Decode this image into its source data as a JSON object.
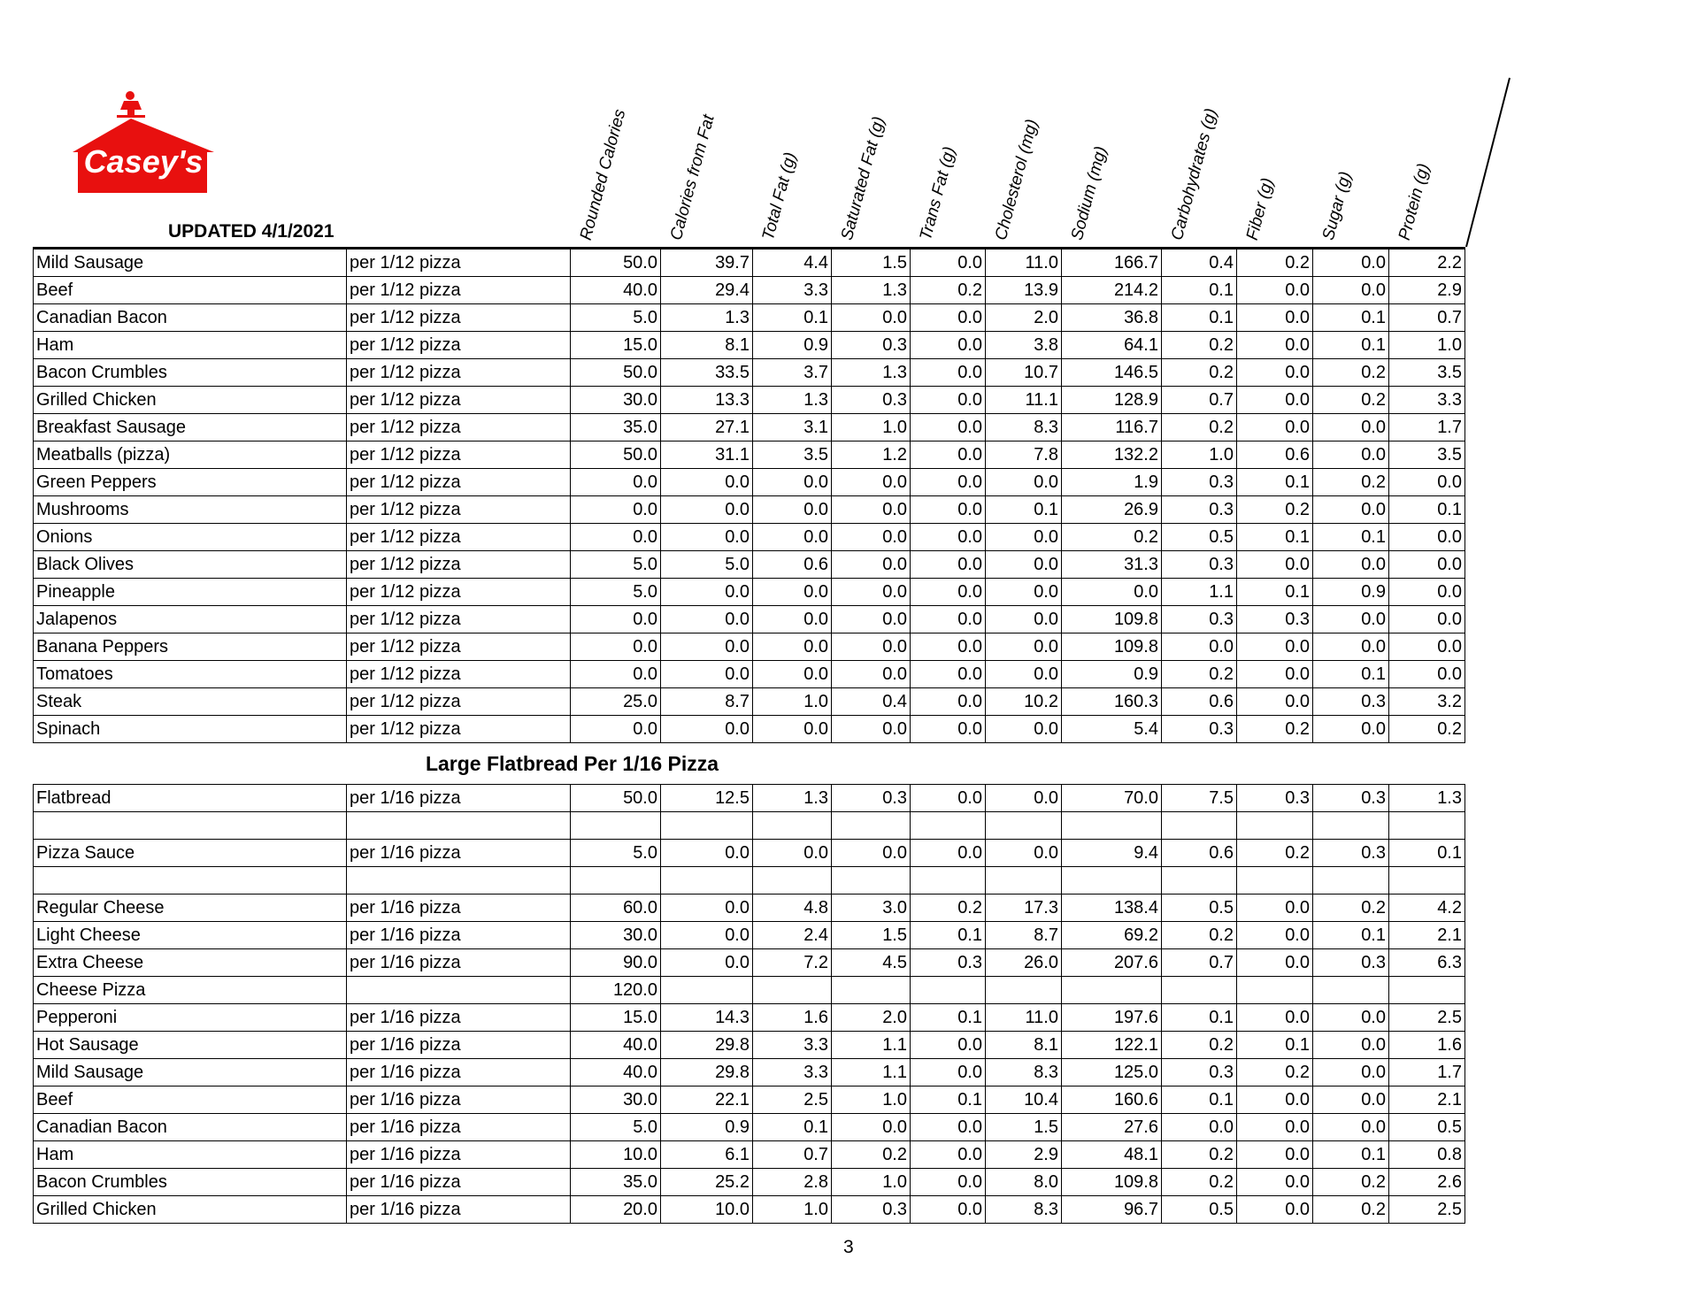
{
  "brand": {
    "logo_text": "Casey's",
    "color": "#e8100f"
  },
  "updated": "UPDATED 4/1/2021",
  "columns": [
    "Rounded Calories",
    "Calories from Fat",
    "Total Fat (g)",
    "Saturated Fat (g)",
    "Trans Fat (g)",
    "Cholesterol (mg)",
    "Sodium (mg)",
    "Carbohydrates (g)",
    "Fiber (g)",
    "Sugar (g)",
    "Protein (g)"
  ],
  "sections": [
    {
      "title": "",
      "rows": [
        [
          "Mild Sausage",
          "per 1/12 pizza",
          "50.0",
          "39.7",
          "4.4",
          "1.5",
          "0.0",
          "11.0",
          "166.7",
          "0.4",
          "0.2",
          "0.0",
          "2.2"
        ],
        [
          "Beef",
          "per 1/12 pizza",
          "40.0",
          "29.4",
          "3.3",
          "1.3",
          "0.2",
          "13.9",
          "214.2",
          "0.1",
          "0.0",
          "0.0",
          "2.9"
        ],
        [
          "Canadian Bacon",
          "per 1/12 pizza",
          "5.0",
          "1.3",
          "0.1",
          "0.0",
          "0.0",
          "2.0",
          "36.8",
          "0.1",
          "0.0",
          "0.1",
          "0.7"
        ],
        [
          "Ham",
          "per 1/12 pizza",
          "15.0",
          "8.1",
          "0.9",
          "0.3",
          "0.0",
          "3.8",
          "64.1",
          "0.2",
          "0.0",
          "0.1",
          "1.0"
        ],
        [
          "Bacon Crumbles",
          "per 1/12 pizza",
          "50.0",
          "33.5",
          "3.7",
          "1.3",
          "0.0",
          "10.7",
          "146.5",
          "0.2",
          "0.0",
          "0.2",
          "3.5"
        ],
        [
          "Grilled Chicken",
          "per 1/12 pizza",
          "30.0",
          "13.3",
          "1.3",
          "0.3",
          "0.0",
          "11.1",
          "128.9",
          "0.7",
          "0.0",
          "0.2",
          "3.3"
        ],
        [
          "Breakfast Sausage",
          "per 1/12 pizza",
          "35.0",
          "27.1",
          "3.1",
          "1.0",
          "0.0",
          "8.3",
          "116.7",
          "0.2",
          "0.0",
          "0.0",
          "1.7"
        ],
        [
          "Meatballs (pizza)",
          "per 1/12 pizza",
          "50.0",
          "31.1",
          "3.5",
          "1.2",
          "0.0",
          "7.8",
          "132.2",
          "1.0",
          "0.6",
          "0.0",
          "3.5"
        ],
        [
          "Green Peppers",
          "per 1/12 pizza",
          "0.0",
          "0.0",
          "0.0",
          "0.0",
          "0.0",
          "0.0",
          "1.9",
          "0.3",
          "0.1",
          "0.2",
          "0.0"
        ],
        [
          "Mushrooms",
          "per 1/12 pizza",
          "0.0",
          "0.0",
          "0.0",
          "0.0",
          "0.0",
          "0.1",
          "26.9",
          "0.3",
          "0.2",
          "0.0",
          "0.1"
        ],
        [
          "Onions",
          "per 1/12 pizza",
          "0.0",
          "0.0",
          "0.0",
          "0.0",
          "0.0",
          "0.0",
          "0.2",
          "0.5",
          "0.1",
          "0.1",
          "0.0"
        ],
        [
          "Black Olives",
          "per 1/12 pizza",
          "5.0",
          "5.0",
          "0.6",
          "0.0",
          "0.0",
          "0.0",
          "31.3",
          "0.3",
          "0.0",
          "0.0",
          "0.0"
        ],
        [
          "Pineapple",
          "per 1/12 pizza",
          "5.0",
          "0.0",
          "0.0",
          "0.0",
          "0.0",
          "0.0",
          "0.0",
          "1.1",
          "0.1",
          "0.9",
          "0.0"
        ],
        [
          "Jalapenos",
          "per 1/12 pizza",
          "0.0",
          "0.0",
          "0.0",
          "0.0",
          "0.0",
          "0.0",
          "109.8",
          "0.3",
          "0.3",
          "0.0",
          "0.0"
        ],
        [
          "Banana Peppers",
          "per 1/12 pizza",
          "0.0",
          "0.0",
          "0.0",
          "0.0",
          "0.0",
          "0.0",
          "109.8",
          "0.0",
          "0.0",
          "0.0",
          "0.0"
        ],
        [
          "Tomatoes",
          "per 1/12 pizza",
          "0.0",
          "0.0",
          "0.0",
          "0.0",
          "0.0",
          "0.0",
          "0.9",
          "0.2",
          "0.0",
          "0.1",
          "0.0"
        ],
        [
          "Steak",
          "per 1/12 pizza",
          "25.0",
          "8.7",
          "1.0",
          "0.4",
          "0.0",
          "10.2",
          "160.3",
          "0.6",
          "0.0",
          "0.3",
          "3.2"
        ],
        [
          "Spinach",
          "per 1/12 pizza",
          "0.0",
          "0.0",
          "0.0",
          "0.0",
          "0.0",
          "0.0",
          "5.4",
          "0.3",
          "0.2",
          "0.0",
          "0.2"
        ]
      ]
    },
    {
      "title": "Large Flatbread Per 1/16 Pizza",
      "rows": [
        [
          "Flatbread",
          "per 1/16 pizza",
          "50.0",
          "12.5",
          "1.3",
          "0.3",
          "0.0",
          "0.0",
          "70.0",
          "7.5",
          "0.3",
          "0.3",
          "1.3"
        ],
        [
          "",
          "",
          "",
          "",
          "",
          "",
          "",
          "",
          "",
          "",
          "",
          "",
          ""
        ],
        [
          "Pizza Sauce",
          "per 1/16 pizza",
          "5.0",
          "0.0",
          "0.0",
          "0.0",
          "0.0",
          "0.0",
          "9.4",
          "0.6",
          "0.2",
          "0.3",
          "0.1"
        ],
        [
          "",
          "",
          "",
          "",
          "",
          "",
          "",
          "",
          "",
          "",
          "",
          "",
          ""
        ],
        [
          "Regular Cheese",
          "per 1/16 pizza",
          "60.0",
          "0.0",
          "4.8",
          "3.0",
          "0.2",
          "17.3",
          "138.4",
          "0.5",
          "0.0",
          "0.2",
          "4.2"
        ],
        [
          "Light Cheese",
          "per 1/16 pizza",
          "30.0",
          "0.0",
          "2.4",
          "1.5",
          "0.1",
          "8.7",
          "69.2",
          "0.2",
          "0.0",
          "0.1",
          "2.1"
        ],
        [
          "Extra Cheese",
          "per 1/16 pizza",
          "90.0",
          "0.0",
          "7.2",
          "4.5",
          "0.3",
          "26.0",
          "207.6",
          "0.7",
          "0.0",
          "0.3",
          "6.3"
        ],
        [
          "Cheese Pizza",
          "",
          "120.0",
          "",
          "",
          "",
          "",
          "",
          "",
          "",
          "",
          "",
          ""
        ],
        [
          "Pepperoni",
          "per 1/16 pizza",
          "15.0",
          "14.3",
          "1.6",
          "2.0",
          "0.1",
          "11.0",
          "197.6",
          "0.1",
          "0.0",
          "0.0",
          "2.5"
        ],
        [
          "Hot Sausage",
          "per 1/16 pizza",
          "40.0",
          "29.8",
          "3.3",
          "1.1",
          "0.0",
          "8.1",
          "122.1",
          "0.2",
          "0.1",
          "0.0",
          "1.6"
        ],
        [
          "Mild Sausage",
          "per 1/16 pizza",
          "40.0",
          "29.8",
          "3.3",
          "1.1",
          "0.0",
          "8.3",
          "125.0",
          "0.3",
          "0.2",
          "0.0",
          "1.7"
        ],
        [
          "Beef",
          "per 1/16 pizza",
          "30.0",
          "22.1",
          "2.5",
          "1.0",
          "0.1",
          "10.4",
          "160.6",
          "0.1",
          "0.0",
          "0.0",
          "2.1"
        ],
        [
          "Canadian Bacon",
          "per 1/16 pizza",
          "5.0",
          "0.9",
          "0.1",
          "0.0",
          "0.0",
          "1.5",
          "27.6",
          "0.0",
          "0.0",
          "0.0",
          "0.5"
        ],
        [
          "Ham",
          "per 1/16 pizza",
          "10.0",
          "6.1",
          "0.7",
          "0.2",
          "0.0",
          "2.9",
          "48.1",
          "0.2",
          "0.0",
          "0.1",
          "0.8"
        ],
        [
          "Bacon Crumbles",
          "per 1/16 pizza",
          "35.0",
          "25.2",
          "2.8",
          "1.0",
          "0.0",
          "8.0",
          "109.8",
          "0.2",
          "0.0",
          "0.2",
          "2.6"
        ],
        [
          "Grilled Chicken",
          "per 1/16 pizza",
          "20.0",
          "10.0",
          "1.0",
          "0.3",
          "0.0",
          "8.3",
          "96.7",
          "0.5",
          "0.0",
          "0.2",
          "2.5"
        ]
      ]
    }
  ],
  "page_number": "3"
}
